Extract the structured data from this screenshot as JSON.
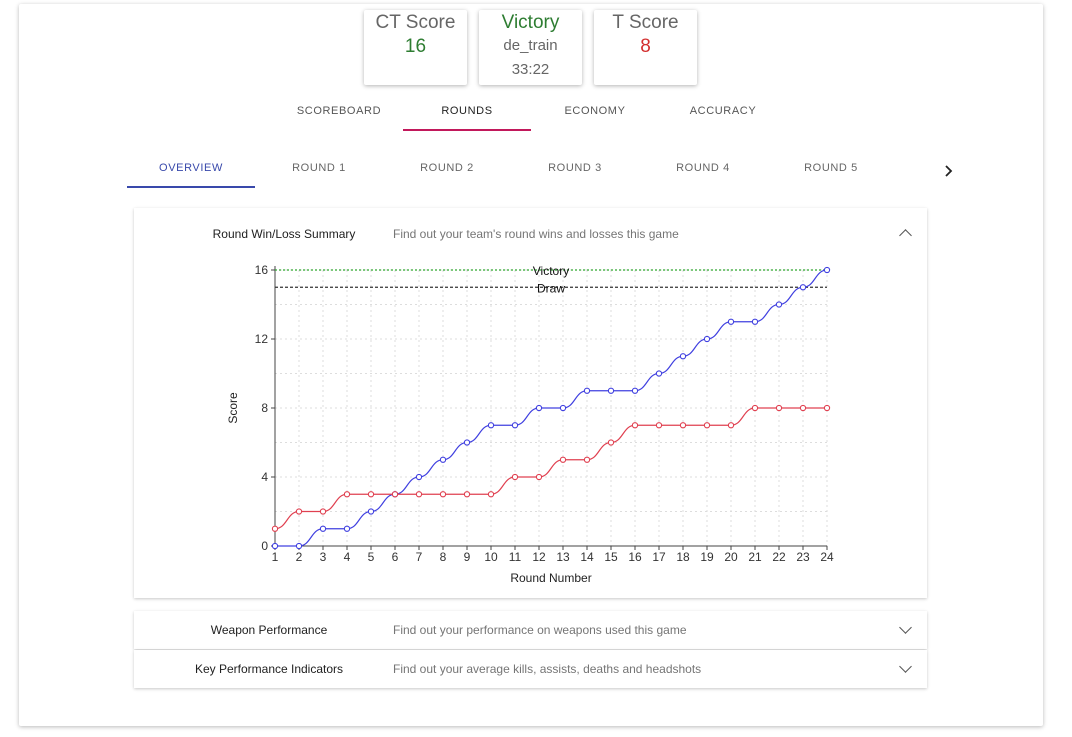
{
  "scores": {
    "ct": {
      "label": "CT Score",
      "value": "16"
    },
    "result": {
      "label": "Victory",
      "map": "de_train",
      "duration": "33:22"
    },
    "t": {
      "label": "T Score",
      "value": "8"
    }
  },
  "colors": {
    "ct": "#4040e0",
    "t": "#e04050",
    "victory_green": "#2e7d32",
    "t_red": "#d32f2f",
    "tab_accent": "#c2185b",
    "subtab_accent": "#3949ab"
  },
  "main_tabs": [
    {
      "label": "SCOREBOARD"
    },
    {
      "label": "ROUNDS"
    },
    {
      "label": "ECONOMY"
    },
    {
      "label": "ACCURACY"
    }
  ],
  "active_main_tab": "ROUNDS",
  "sub_tabs": [
    {
      "label": "OVERVIEW"
    },
    {
      "label": "ROUND 1"
    },
    {
      "label": "ROUND 2"
    },
    {
      "label": "ROUND 3"
    },
    {
      "label": "ROUND 4"
    },
    {
      "label": "ROUND 5"
    }
  ],
  "active_sub_tab": "OVERVIEW",
  "panels": [
    {
      "title": "Round Win/Loss Summary",
      "desc": "Find out your team's round wins and losses this game",
      "expanded": true,
      "icon": "chevron-up-icon"
    },
    {
      "title": "Weapon Performance",
      "desc": "Find out your performance on weapons used this game",
      "expanded": false,
      "icon": "chevron-down-icon"
    },
    {
      "title": "Key Performance Indicators",
      "desc": "Find out your average kills, assists, deaths and headshots",
      "expanded": false,
      "icon": "chevron-down-icon"
    }
  ],
  "chart_data": {
    "type": "line",
    "xlabel": "Round Number",
    "ylabel": "Score",
    "x": [
      1,
      2,
      3,
      4,
      5,
      6,
      7,
      8,
      9,
      10,
      11,
      12,
      13,
      14,
      15,
      16,
      17,
      18,
      19,
      20,
      21,
      22,
      23,
      24
    ],
    "xlim": [
      1,
      24
    ],
    "ylim": [
      0,
      16
    ],
    "yticks": [
      0,
      4,
      8,
      12,
      16
    ],
    "grid": true,
    "series": [
      {
        "color": "#4040e0",
        "values": [
          0,
          0,
          1,
          1,
          2,
          3,
          4,
          5,
          6,
          7,
          7,
          8,
          8,
          9,
          9,
          9,
          10,
          11,
          12,
          13,
          13,
          14,
          15,
          16
        ]
      },
      {
        "color": "#e04050",
        "values": [
          1,
          2,
          2,
          3,
          3,
          3,
          3,
          3,
          3,
          3,
          4,
          4,
          5,
          5,
          6,
          7,
          7,
          7,
          7,
          7,
          8,
          8,
          8,
          8
        ]
      }
    ],
    "annotations": [
      {
        "label": "Victory",
        "y": 16,
        "color": "#2ea82e",
        "style": "dotted"
      },
      {
        "label": "Draw",
        "y": 15,
        "color": "#333333",
        "style": "dashed"
      }
    ]
  }
}
